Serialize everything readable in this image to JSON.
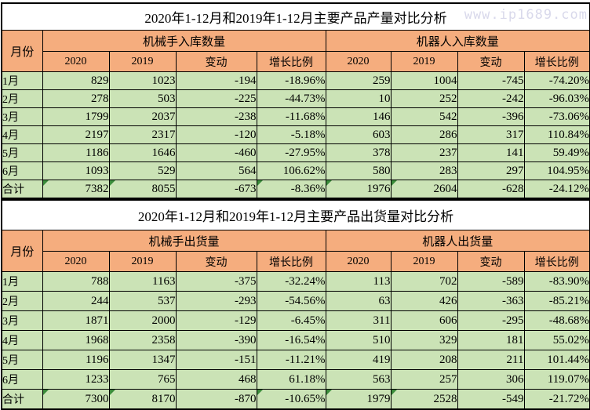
{
  "watermark": "www.ip1689.com",
  "colors": {
    "header_bg": "#F5AD7E",
    "row_bg": "#CBE3B6",
    "title_bg": "#FFFFFF",
    "border": "#000000",
    "watermark_text": "#D9D9EB",
    "flag_triangle": "#3B8C3B"
  },
  "chart_data": [
    {
      "type": "table",
      "title": "2020年1-12月和2019年1-12月主要产品产量对比分析",
      "month_header": "月份",
      "groups": [
        "机械手入库数量",
        "机器人入库数量"
      ],
      "sub_headers": [
        "2020",
        "2019",
        "变动",
        "增长比例"
      ],
      "rows": [
        {
          "month": "1月",
          "left": [
            "829",
            "1023",
            "-194",
            "-18.96%"
          ],
          "right": [
            "259",
            "1004",
            "-745",
            "-74.20%"
          ]
        },
        {
          "month": "2月",
          "left": [
            "278",
            "503",
            "-225",
            "-44.73%"
          ],
          "right": [
            "10",
            "252",
            "-242",
            "-96.03%"
          ]
        },
        {
          "month": "3月",
          "left": [
            "1799",
            "2037",
            "-238",
            "-11.68%"
          ],
          "right": [
            "146",
            "542",
            "-396",
            "-73.06%"
          ]
        },
        {
          "month": "4月",
          "left": [
            "2197",
            "2317",
            "-120",
            "-5.18%"
          ],
          "right": [
            "603",
            "286",
            "317",
            "110.84%"
          ]
        },
        {
          "month": "5月",
          "left": [
            "1186",
            "1646",
            "-460",
            "-27.95%"
          ],
          "right": [
            "378",
            "237",
            "141",
            "59.49%"
          ]
        },
        {
          "month": "6月",
          "left": [
            "1093",
            "529",
            "564",
            "106.62%"
          ],
          "right": [
            "580",
            "283",
            "297",
            "104.95%"
          ]
        },
        {
          "month": "合计",
          "left": [
            "7382",
            "8055",
            "-673",
            "-8.36%"
          ],
          "right": [
            "1976",
            "2604",
            "-628",
            "-24.12%"
          ],
          "tri_left": [
            0,
            1,
            3
          ],
          "tri_right": [
            0,
            1
          ]
        }
      ]
    },
    {
      "type": "table",
      "title": "2020年1-12月和2019年1-12月主要产品出货量对比分析",
      "month_header": "月份",
      "groups": [
        "机械手出货量",
        "机器人出货量"
      ],
      "sub_headers": [
        "2020",
        "2019",
        "变动",
        "增长比例"
      ],
      "rows": [
        {
          "month": "1月",
          "left": [
            "788",
            "1163",
            "-375",
            "-32.24%"
          ],
          "right": [
            "113",
            "702",
            "-589",
            "-83.90%"
          ]
        },
        {
          "month": "2月",
          "left": [
            "244",
            "537",
            "-293",
            "-54.56%"
          ],
          "right": [
            "63",
            "426",
            "-363",
            "-85.21%"
          ]
        },
        {
          "month": "3月",
          "left": [
            "1871",
            "2000",
            "-129",
            "-6.45%"
          ],
          "right": [
            "311",
            "606",
            "-295",
            "-48.68%"
          ]
        },
        {
          "month": "4月",
          "left": [
            "1968",
            "2358",
            "-390",
            "-16.54%"
          ],
          "right": [
            "510",
            "329",
            "181",
            "55.02%"
          ]
        },
        {
          "month": "5月",
          "left": [
            "1196",
            "1347",
            "-151",
            "-11.21%"
          ],
          "right": [
            "419",
            "208",
            "211",
            "101.44%"
          ]
        },
        {
          "month": "6月",
          "left": [
            "1233",
            "765",
            "468",
            "61.18%"
          ],
          "right": [
            "563",
            "257",
            "306",
            "119.07%"
          ]
        },
        {
          "month": "合计",
          "left": [
            "7300",
            "8170",
            "-870",
            "-10.65%"
          ],
          "right": [
            "1979",
            "2528",
            "-549",
            "-21.72%"
          ],
          "tri_left": [
            0,
            1,
            3
          ],
          "tri_right": [
            0,
            1
          ]
        }
      ]
    }
  ]
}
